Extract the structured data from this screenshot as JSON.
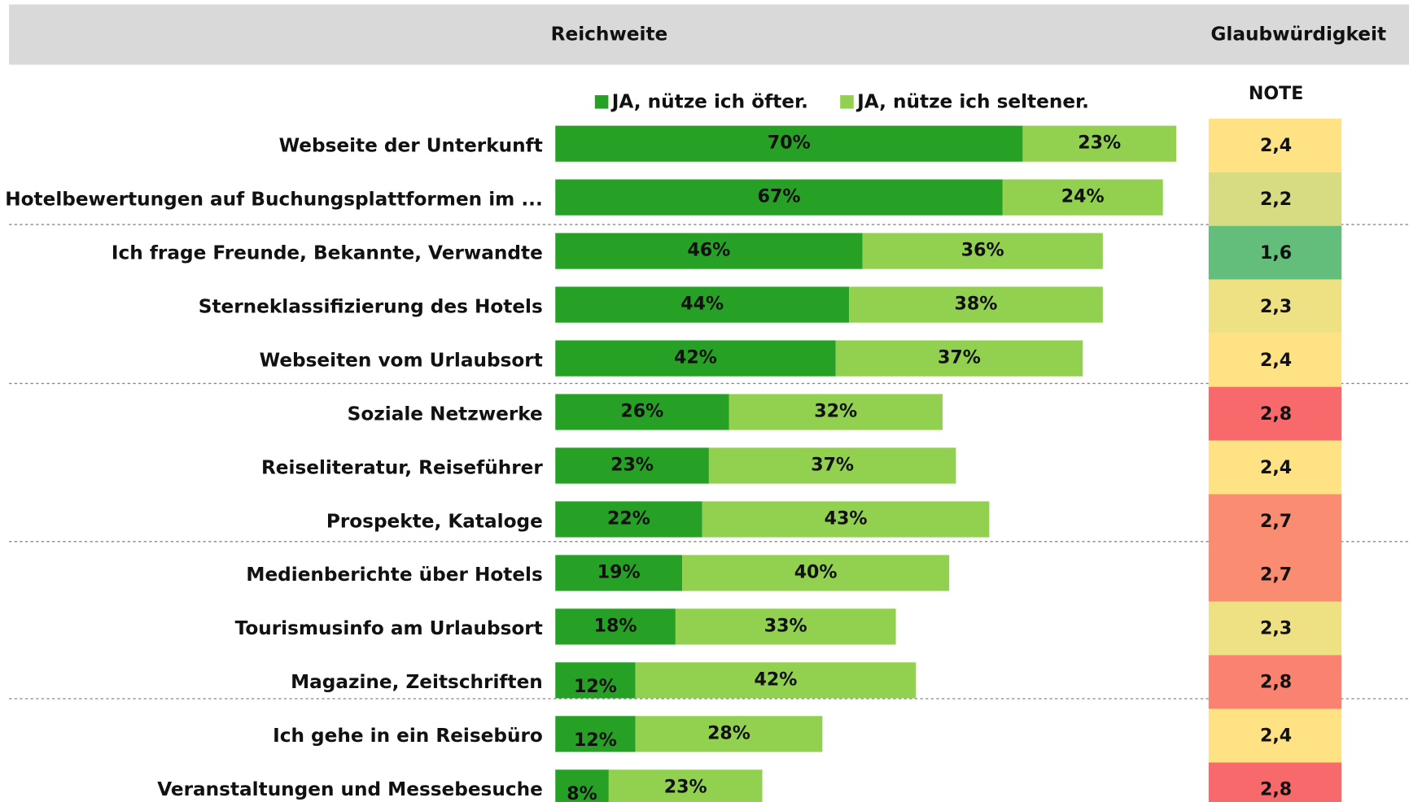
{
  "chart_data": {
    "type": "bar",
    "orientation": "horizontal",
    "stacked": true,
    "title": "Reichweite",
    "categories": [
      "Webseite der Unterkunft",
      "Hotelbewertungen auf Buchungsplattformen im ...",
      "Ich frage Freunde, Bekannte, Verwandte",
      "Sterneklassifizierung des Hotels",
      "Webseiten vom Urlaubsort",
      "Soziale Netzwerke",
      "Reiseliteratur, Reiseführer",
      "Prospekte, Kataloge",
      "Medienberichte über Hotels",
      "Tourismusinfo am Urlaubsort",
      "Magazine, Zeitschriften",
      "Ich gehe in ein Reisebüro",
      "Veranstaltungen und Messebesuche"
    ],
    "series": [
      {
        "name": "JA, nütze ich öfter.",
        "color": "#26a125",
        "values": [
          70,
          67,
          46,
          44,
          42,
          26,
          23,
          22,
          19,
          18,
          12,
          12,
          8
        ],
        "value_labels": [
          "70%",
          "67%",
          "46%",
          "44%",
          "42%",
          "26%",
          "23%",
          "22%",
          "19%",
          "18%",
          "12%",
          "12%",
          "8%"
        ]
      },
      {
        "name": "JA, nütze ich seltener.",
        "color": "#92d050",
        "values": [
          23,
          24,
          36,
          38,
          37,
          32,
          37,
          43,
          40,
          33,
          42,
          28,
          23
        ],
        "value_labels": [
          "23%",
          "24%",
          "36%",
          "38%",
          "37%",
          "32%",
          "37%",
          "43%",
          "40%",
          "33%",
          "42%",
          "28%",
          "23%"
        ]
      }
    ],
    "legend": "top"
  },
  "credibility": {
    "title": "Glaubwürdigkeit",
    "header": "NOTE",
    "values": [
      2.4,
      2.2,
      1.6,
      2.3,
      2.4,
      2.8,
      2.4,
      2.7,
      2.7,
      2.3,
      2.8,
      2.4,
      2.8
    ],
    "value_labels": [
      "2,4",
      "2,2",
      "1,6",
      "2,3",
      "2,4",
      "2,8",
      "2,4",
      "2,7",
      "2,7",
      "2,3",
      "2,8",
      "2,4",
      "2,8"
    ],
    "colors": [
      "#fee283",
      "#d7db81",
      "#63be7b",
      "#eee184",
      "#fee283",
      "#f8696b",
      "#fee283",
      "#fa8c72",
      "#fa8c72",
      "#eee184",
      "#f98370",
      "#fee283",
      "#f8696b"
    ]
  }
}
